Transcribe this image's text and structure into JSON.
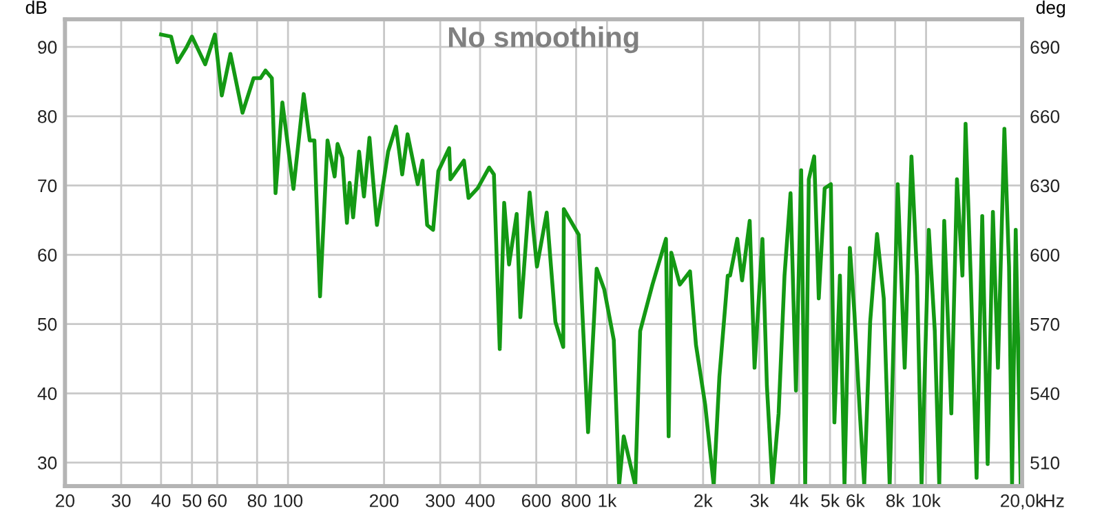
{
  "chart_data": {
    "type": "line",
    "title": "No smoothing",
    "ylabel": "dB",
    "y2label": "deg",
    "log": "x",
    "grid": true,
    "marker": "none",
    "line_style": "solid",
    "xlim": [
      20,
      20000
    ],
    "ylim": [
      26.6,
      94
    ],
    "y2lim": [
      499.8,
      702
    ],
    "xticks": [
      20,
      30,
      40,
      50,
      60,
      80,
      100,
      200,
      300,
      400,
      600,
      800,
      {
        "value": 1000,
        "label": "1k"
      },
      {
        "value": 2000,
        "label": "2k"
      },
      {
        "value": 3000,
        "label": "3k"
      },
      {
        "value": 4000,
        "label": "4k"
      },
      {
        "value": 5000,
        "label": "5k"
      },
      {
        "value": 6000,
        "label": "6k"
      },
      {
        "value": 8000,
        "label": "8k"
      },
      {
        "value": 10000,
        "label": "10k"
      },
      {
        "value": 20000,
        "label": "20,0k"
      }
    ],
    "xlabel": "Hz",
    "yticks": [
      30,
      40,
      50,
      60,
      70,
      80,
      90
    ],
    "y2ticks": [
      510,
      540,
      570,
      600,
      630,
      660,
      690
    ],
    "x": [
      40,
      43,
      45,
      48,
      50,
      55,
      59,
      62,
      66,
      72,
      78,
      82,
      85,
      89,
      91.4,
      96,
      104,
      112,
      117,
      121,
      126,
      133,
      140,
      143,
      148,
      153,
      156,
      160,
      167,
      173,
      180,
      190,
      206,
      218,
      228,
      237,
      255,
      264,
      273,
      285,
      296,
      320,
      323,
      356,
      368,
      393,
      427,
      442,
      461,
      476,
      493,
      521,
      535,
      572,
      603,
      647,
      689,
      729,
      732,
      815,
      872,
      928,
      980,
      1050,
      1091,
      1128,
      1226,
      1270,
      1388,
      1530,
      1560,
      1590,
      1691,
      1820,
      1900,
      2030,
      2160,
      2250,
      2390,
      2430,
      2560,
      2650,
      2800,
      2900,
      3070,
      3170,
      3300,
      3450,
      3600,
      3760,
      3910,
      4060,
      4180,
      4290,
      4460,
      4610,
      4810,
      5030,
      5160,
      5370,
      5550,
      5770,
      5960,
      6200,
      6400,
      6680,
      7020,
      7370,
      7690,
      8150,
      8570,
      9000,
      9370,
      9680,
      10200,
      10650,
      11000,
      11400,
      12000,
      12500,
      13000,
      13300,
      13800,
      14400,
      15000,
      15600,
      16200,
      16800,
      17600,
      18200,
      18600,
      19100,
      19800,
      20000
    ],
    "series": [
      {
        "color": "#149914",
        "values": [
          91.8,
          91.5,
          87.8,
          89.9,
          91.5,
          87.5,
          91.8,
          83,
          89,
          80.5,
          85.5,
          85.5,
          86.6,
          85.5,
          68.9,
          82,
          69.5,
          83.2,
          76.5,
          76.5,
          54,
          76.5,
          71.3,
          76,
          74,
          64.6,
          70.4,
          65.4,
          74.9,
          68.4,
          76.9,
          64.3,
          74.9,
          78.5,
          71.6,
          77.4,
          70.2,
          73.6,
          64.3,
          63.6,
          72.1,
          75.4,
          70.9,
          73.6,
          68.2,
          69.6,
          72.6,
          71.6,
          46.4,
          67.5,
          58.6,
          65.9,
          51,
          69,
          58.3,
          66.1,
          50.3,
          46.7,
          66.6,
          62.9,
          34.4,
          58,
          55,
          47.7,
          26.7,
          33.8,
          26.7,
          49,
          55.7,
          62.3,
          33.8,
          60.3,
          55.7,
          57.6,
          47,
          38.4,
          26.7,
          42.4,
          57,
          57,
          62.3,
          56.3,
          64.9,
          43.7,
          62.3,
          41.1,
          26.7,
          37.1,
          57,
          68.9,
          40.4,
          72.2,
          26.7,
          70.9,
          74.2,
          53.7,
          69.6,
          70.2,
          35.8,
          57,
          26.7,
          61,
          51.7,
          37.1,
          26.7,
          50.3,
          63,
          53.7,
          26.7,
          70.2,
          43.7,
          74.2,
          57,
          26.7,
          63.6,
          49,
          26.7,
          64.9,
          37.1,
          70.9,
          57,
          78.9,
          57,
          27.8,
          65.6,
          29.8,
          66.2,
          43.7,
          78.2,
          58.3,
          26.7,
          63.6,
          26.7,
          57.6
        ]
      }
    ]
  }
}
